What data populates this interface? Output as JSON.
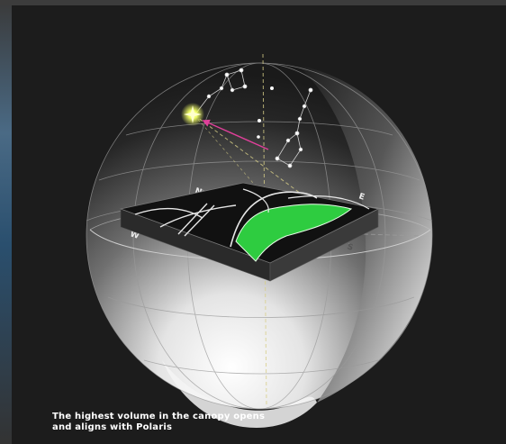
{
  "caption": {
    "line1": "The highest volume in the canopy opens",
    "line2": "and aligns with Polaris"
  },
  "compass": {
    "north": "N",
    "east": "E",
    "south": "S",
    "west": "W"
  },
  "colors": {
    "background": "#1c1c1c",
    "polaris_glow": "#f2ff66",
    "arrow": "#e0409a",
    "site_green": "#2ecc40",
    "guide_lines": "#c8c07a"
  },
  "icons": [
    "polaris-star-icon",
    "alignment-arrow-icon",
    "little-dipper-constellation",
    "big-dipper-constellation",
    "celestial-sphere",
    "site-model-slab"
  ]
}
